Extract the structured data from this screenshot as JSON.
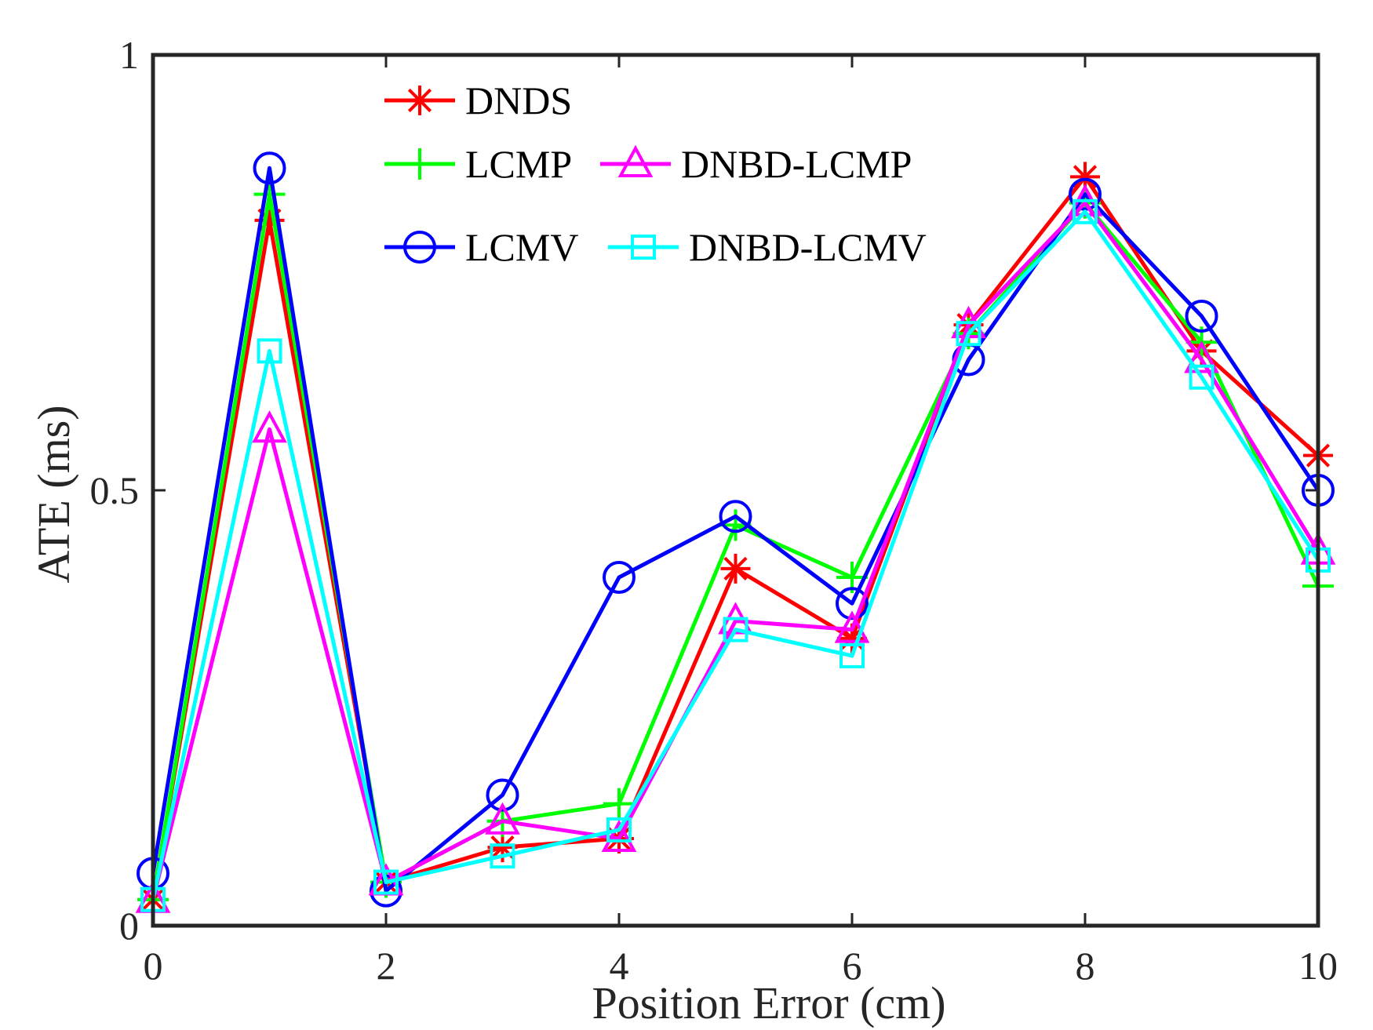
{
  "chart_data": {
    "type": "line",
    "title": "",
    "xlabel": "Position Error (cm)",
    "ylabel": "ATE (ms)",
    "xlim": [
      0,
      10
    ],
    "ylim": [
      0,
      1
    ],
    "x_ticks": [
      0,
      2,
      4,
      6,
      8,
      10
    ],
    "y_ticks": [
      0,
      0.5,
      1
    ],
    "x_tick_labels": [
      "0",
      "2",
      "4",
      "6",
      "8",
      "10"
    ],
    "y_tick_labels": [
      "0",
      "0.5",
      "1"
    ],
    "grid": false,
    "legend_position": "top-left",
    "x": [
      0,
      1,
      2,
      3,
      4,
      5,
      6,
      7,
      8,
      9,
      10
    ],
    "series": [
      {
        "name": "DNDS",
        "color": "#ff0000",
        "marker": "asterisk",
        "values": [
          0.03,
          0.81,
          0.05,
          0.09,
          0.1,
          0.41,
          0.33,
          0.69,
          0.86,
          0.66,
          0.54
        ]
      },
      {
        "name": "LCMP",
        "color": "#00ff00",
        "marker": "plus",
        "values": [
          0.03,
          0.84,
          0.05,
          0.12,
          0.14,
          0.46,
          0.4,
          0.68,
          0.83,
          0.67,
          0.39
        ]
      },
      {
        "name": "LCMV",
        "color": "#0000ff",
        "marker": "circle",
        "values": [
          0.06,
          0.87,
          0.04,
          0.15,
          0.4,
          0.47,
          0.37,
          0.65,
          0.84,
          0.7,
          0.5
        ]
      },
      {
        "name": "DNBD-LCMP",
        "color": "#ff00ff",
        "marker": "triangle",
        "values": [
          0.03,
          0.57,
          0.05,
          0.12,
          0.1,
          0.35,
          0.34,
          0.69,
          0.83,
          0.65,
          0.43
        ]
      },
      {
        "name": "DNBD-LCMV",
        "color": "#00ffff",
        "marker": "square",
        "values": [
          0.03,
          0.66,
          0.05,
          0.08,
          0.11,
          0.34,
          0.31,
          0.68,
          0.82,
          0.63,
          0.42
        ]
      }
    ]
  }
}
